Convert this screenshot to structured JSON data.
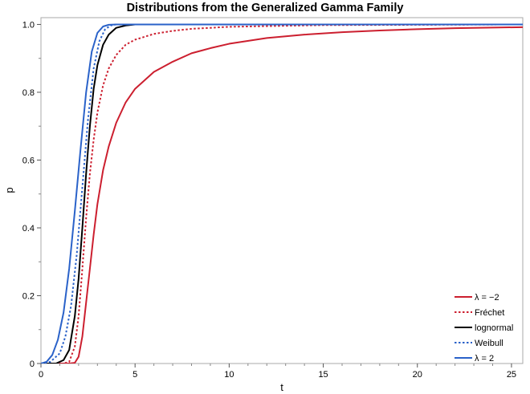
{
  "chart_data": {
    "type": "line",
    "title": "Distributions from the Generalized Gamma Family",
    "xlabel": "t",
    "ylabel": "p",
    "xlim": [
      0,
      25.6
    ],
    "ylim": [
      0,
      1.02
    ],
    "x_ticks": [
      0,
      5,
      10,
      15,
      20,
      25
    ],
    "y_ticks": [
      0,
      0.2,
      0.4,
      0.6,
      0.8,
      1.0
    ],
    "x_tick_labels": [
      "0",
      "5",
      "10",
      "15",
      "20",
      "25"
    ],
    "y_tick_labels": [
      "0",
      "0.2",
      "0.4",
      "0.6",
      "0.8",
      "1.0"
    ],
    "grid": false,
    "legend_position": "bottom-right",
    "series": [
      {
        "name": "λ = −2",
        "color": "#cc1f2f",
        "dash": "solid",
        "points": [
          [
            0,
            0
          ],
          [
            1.5,
            0
          ],
          [
            1.8,
            0.002
          ],
          [
            2,
            0.02
          ],
          [
            2.2,
            0.08
          ],
          [
            2.4,
            0.18
          ],
          [
            2.6,
            0.28
          ],
          [
            2.8,
            0.38
          ],
          [
            3,
            0.47
          ],
          [
            3.3,
            0.57
          ],
          [
            3.6,
            0.64
          ],
          [
            4,
            0.71
          ],
          [
            4.5,
            0.77
          ],
          [
            5,
            0.81
          ],
          [
            6,
            0.86
          ],
          [
            7,
            0.89
          ],
          [
            8,
            0.915
          ],
          [
            9,
            0.93
          ],
          [
            10,
            0.943
          ],
          [
            12,
            0.96
          ],
          [
            14,
            0.97
          ],
          [
            16,
            0.977
          ],
          [
            18,
            0.982
          ],
          [
            20,
            0.986
          ],
          [
            22,
            0.989
          ],
          [
            25.6,
            0.992
          ]
        ]
      },
      {
        "name": "Fréchet",
        "color": "#cc1f2f",
        "dash": "dotted",
        "points": [
          [
            0,
            0
          ],
          [
            1.2,
            0
          ],
          [
            1.5,
            0.005
          ],
          [
            1.8,
            0.05
          ],
          [
            2,
            0.14
          ],
          [
            2.2,
            0.28
          ],
          [
            2.4,
            0.43
          ],
          [
            2.6,
            0.56
          ],
          [
            2.8,
            0.66
          ],
          [
            3,
            0.74
          ],
          [
            3.3,
            0.82
          ],
          [
            3.6,
            0.87
          ],
          [
            4,
            0.91
          ],
          [
            4.5,
            0.94
          ],
          [
            5,
            0.955
          ],
          [
            6,
            0.972
          ],
          [
            7,
            0.981
          ],
          [
            8,
            0.987
          ],
          [
            10,
            0.993
          ],
          [
            15,
            0.998
          ],
          [
            25.6,
            1.0
          ]
        ]
      },
      {
        "name": "lognormal",
        "color": "#000000",
        "dash": "solid",
        "points": [
          [
            0,
            0
          ],
          [
            0.8,
            0
          ],
          [
            1.2,
            0.01
          ],
          [
            1.5,
            0.04
          ],
          [
            1.8,
            0.14
          ],
          [
            2,
            0.25
          ],
          [
            2.2,
            0.4
          ],
          [
            2.4,
            0.56
          ],
          [
            2.6,
            0.7
          ],
          [
            2.8,
            0.81
          ],
          [
            3,
            0.88
          ],
          [
            3.3,
            0.94
          ],
          [
            3.6,
            0.97
          ],
          [
            4,
            0.99
          ],
          [
            4.5,
            0.997
          ],
          [
            5,
            1.0
          ],
          [
            25.6,
            1.0
          ]
        ]
      },
      {
        "name": "Weibull",
        "color": "#2a62c9",
        "dash": "dotted",
        "points": [
          [
            0,
            0
          ],
          [
            0.5,
            0.005
          ],
          [
            1,
            0.03
          ],
          [
            1.3,
            0.08
          ],
          [
            1.6,
            0.17
          ],
          [
            1.9,
            0.32
          ],
          [
            2.2,
            0.52
          ],
          [
            2.5,
            0.72
          ],
          [
            2.8,
            0.87
          ],
          [
            3.1,
            0.95
          ],
          [
            3.4,
            0.985
          ],
          [
            3.7,
            0.997
          ],
          [
            4,
            1.0
          ],
          [
            25.6,
            1.0
          ]
        ]
      },
      {
        "name": "λ = 2",
        "color": "#2a62c9",
        "dash": "solid",
        "points": [
          [
            0,
            0
          ],
          [
            0.3,
            0.005
          ],
          [
            0.6,
            0.025
          ],
          [
            0.9,
            0.07
          ],
          [
            1.2,
            0.15
          ],
          [
            1.5,
            0.28
          ],
          [
            1.8,
            0.45
          ],
          [
            2.1,
            0.63
          ],
          [
            2.4,
            0.8
          ],
          [
            2.7,
            0.92
          ],
          [
            3,
            0.975
          ],
          [
            3.3,
            0.994
          ],
          [
            3.6,
            0.999
          ],
          [
            4,
            1.0
          ],
          [
            25.6,
            1.0
          ]
        ]
      }
    ]
  }
}
